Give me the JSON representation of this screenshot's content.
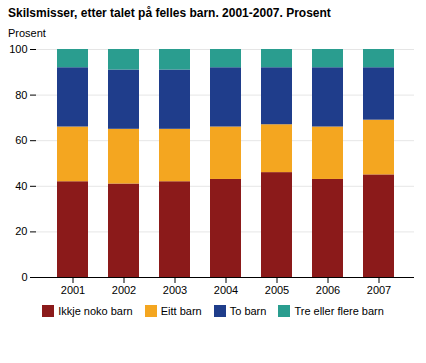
{
  "chart_data": {
    "type": "bar",
    "stacked": true,
    "title": "Skilsmisser, etter talet på felles barn. 2001-2007. Prosent",
    "y_label": "Prosent",
    "categories": [
      "2001",
      "2002",
      "2003",
      "2004",
      "2005",
      "2006",
      "2007"
    ],
    "series": [
      {
        "name": "Ikkje noko barn",
        "color": "#8B1A1A",
        "values": [
          42,
          41,
          42,
          43,
          46,
          43,
          45
        ]
      },
      {
        "name": "Eitt barn",
        "color": "#F4A620",
        "values": [
          24,
          24,
          23,
          23,
          21,
          23,
          24
        ]
      },
      {
        "name": "To barn",
        "color": "#1F3D8B",
        "values": [
          26,
          26,
          26,
          26,
          25,
          26,
          23
        ]
      },
      {
        "name": "Tre eller flere barn",
        "color": "#2A9D8F",
        "values": [
          8,
          9,
          9,
          8,
          8,
          8,
          8
        ]
      }
    ],
    "ylim": [
      0,
      100
    ],
    "yticks": [
      0,
      20,
      40,
      60,
      80,
      100
    ],
    "grid": true,
    "legend": "bottom"
  }
}
